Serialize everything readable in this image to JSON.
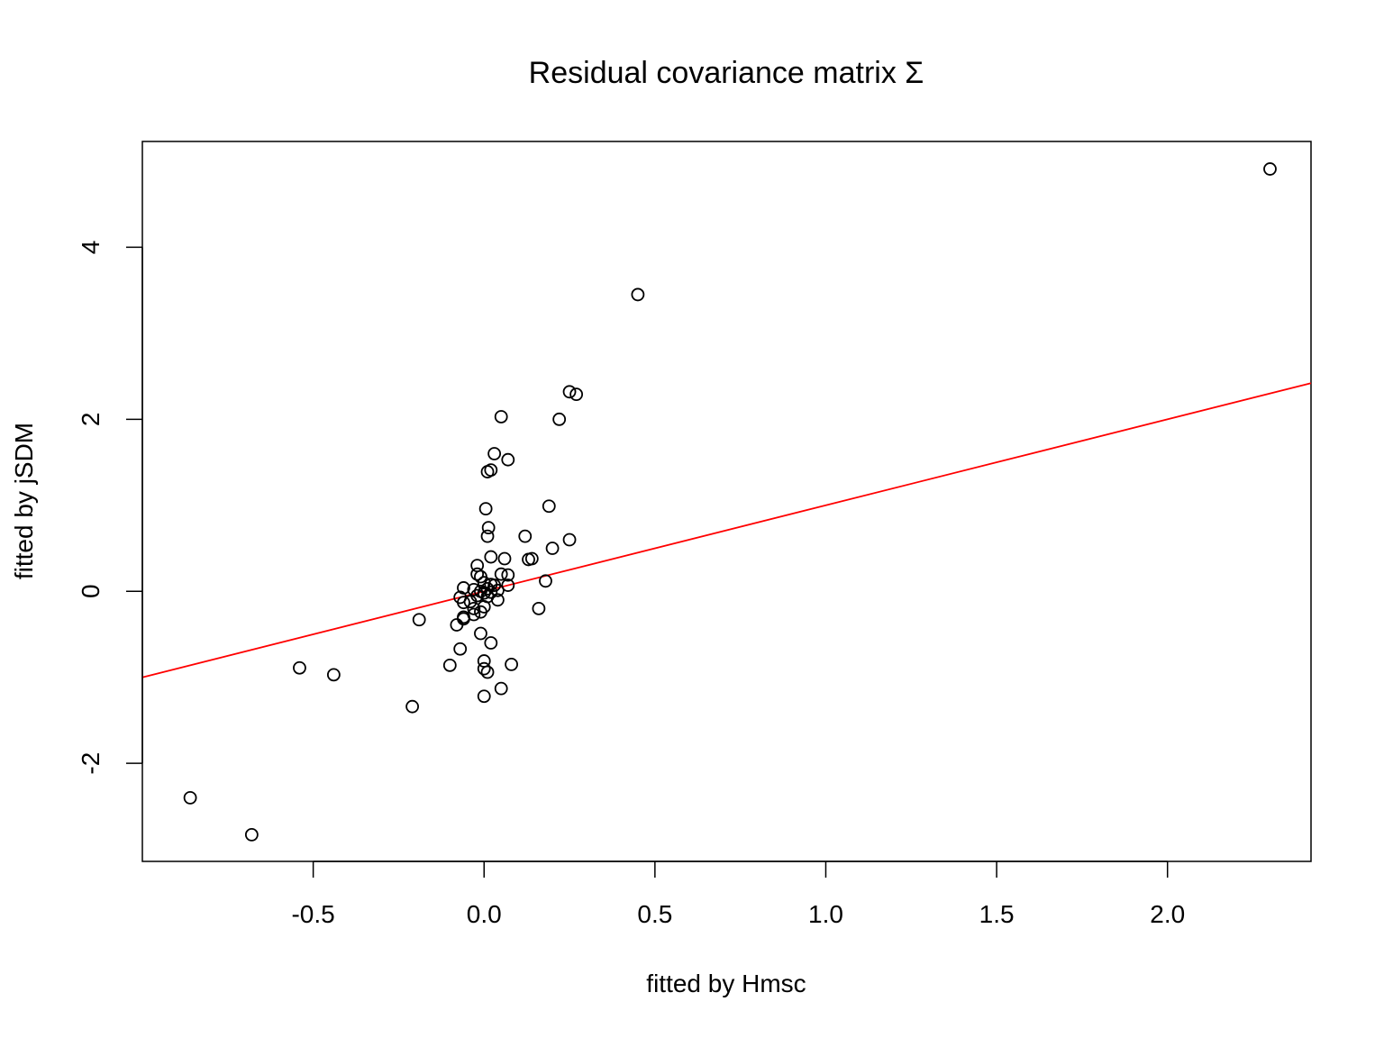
{
  "chart_data": {
    "type": "scatter",
    "title": "Residual covariance matrix Σ",
    "xlabel": "fitted by Hmsc",
    "ylabel": "fitted by jSDM",
    "xlim": [
      -1.0,
      2.42
    ],
    "ylim": [
      -3.14,
      5.23
    ],
    "xticks": [
      -0.5,
      0.0,
      0.5,
      1.0,
      1.5,
      2.0
    ],
    "xtick_labels": [
      "-0.5",
      "0.0",
      "0.5",
      "1.0",
      "1.5",
      "2.0"
    ],
    "yticks": [
      -2,
      0,
      2,
      4
    ],
    "ytick_labels": [
      "-2",
      "0",
      "2",
      "4"
    ],
    "grid": false,
    "point_color": "#000000",
    "line_color": "#ff0000",
    "fit_line": {
      "intercept": 0.0,
      "slope": 1.0
    },
    "points": [
      {
        "x": 2.3,
        "y": 4.91
      },
      {
        "x": 0.45,
        "y": 3.45
      },
      {
        "x": 0.25,
        "y": 2.32
      },
      {
        "x": 0.27,
        "y": 2.29
      },
      {
        "x": 0.22,
        "y": 2.0
      },
      {
        "x": 0.05,
        "y": 2.03
      },
      {
        "x": 0.03,
        "y": 1.6
      },
      {
        "x": 0.07,
        "y": 1.53
      },
      {
        "x": 0.01,
        "y": 1.39
      },
      {
        "x": 0.02,
        "y": 1.41
      },
      {
        "x": 0.005,
        "y": 0.96
      },
      {
        "x": 0.19,
        "y": 0.99
      },
      {
        "x": 0.013,
        "y": 0.74
      },
      {
        "x": 0.01,
        "y": 0.64
      },
      {
        "x": 0.12,
        "y": 0.64
      },
      {
        "x": 0.25,
        "y": 0.6
      },
      {
        "x": 0.2,
        "y": 0.5
      },
      {
        "x": 0.02,
        "y": 0.4
      },
      {
        "x": 0.06,
        "y": 0.38
      },
      {
        "x": 0.13,
        "y": 0.37
      },
      {
        "x": 0.14,
        "y": 0.38
      },
      {
        "x": -0.02,
        "y": 0.3
      },
      {
        "x": -0.02,
        "y": 0.2
      },
      {
        "x": 0.05,
        "y": 0.2
      },
      {
        "x": 0.07,
        "y": 0.19
      },
      {
        "x": -0.01,
        "y": 0.17
      },
      {
        "x": 0.18,
        "y": 0.12
      },
      {
        "x": 0.0,
        "y": 0.1
      },
      {
        "x": 0.02,
        "y": 0.08
      },
      {
        "x": 0.03,
        "y": 0.07
      },
      {
        "x": 0.07,
        "y": 0.07
      },
      {
        "x": -0.06,
        "y": 0.04
      },
      {
        "x": -0.03,
        "y": 0.02
      },
      {
        "x": 0.01,
        "y": 0.03
      },
      {
        "x": 0.04,
        "y": 0.01
      },
      {
        "x": -0.01,
        "y": 0.0
      },
      {
        "x": 0.0,
        "y": -0.02
      },
      {
        "x": 0.02,
        "y": -0.01
      },
      {
        "x": -0.02,
        "y": -0.05
      },
      {
        "x": 0.01,
        "y": -0.06
      },
      {
        "x": -0.07,
        "y": -0.07
      },
      {
        "x": 0.04,
        "y": -0.1
      },
      {
        "x": -0.04,
        "y": -0.12
      },
      {
        "x": -0.06,
        "y": -0.13
      },
      {
        "x": 0.0,
        "y": -0.18
      },
      {
        "x": -0.03,
        "y": -0.2
      },
      {
        "x": 0.16,
        "y": -0.2
      },
      {
        "x": -0.01,
        "y": -0.24
      },
      {
        "x": -0.03,
        "y": -0.27
      },
      {
        "x": -0.06,
        "y": -0.3
      },
      {
        "x": -0.06,
        "y": -0.32
      },
      {
        "x": -0.19,
        "y": -0.33
      },
      {
        "x": -0.08,
        "y": -0.39
      },
      {
        "x": -0.01,
        "y": -0.49
      },
      {
        "x": 0.02,
        "y": -0.6
      },
      {
        "x": -0.07,
        "y": -0.67
      },
      {
        "x": -0.1,
        "y": -0.86
      },
      {
        "x": 0.0,
        "y": -0.81
      },
      {
        "x": 0.0,
        "y": -0.9
      },
      {
        "x": 0.01,
        "y": -0.94
      },
      {
        "x": 0.08,
        "y": -0.85
      },
      {
        "x": -0.54,
        "y": -0.89
      },
      {
        "x": -0.44,
        "y": -0.97
      },
      {
        "x": 0.05,
        "y": -1.13
      },
      {
        "x": 0.0,
        "y": -1.22
      },
      {
        "x": -0.21,
        "y": -1.34
      },
      {
        "x": -0.86,
        "y": -2.4
      },
      {
        "x": -0.68,
        "y": -2.83
      }
    ]
  }
}
